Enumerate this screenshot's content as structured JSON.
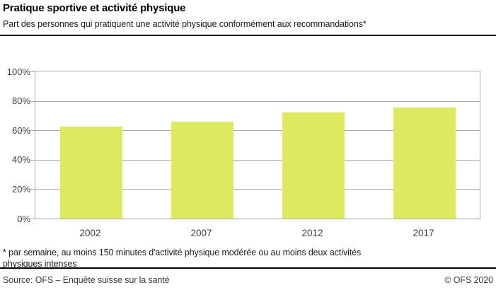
{
  "header": {
    "title": "Pratique sportive et activité physique",
    "subtitle": "Part des personnes qui pratiquent une activité physique conformément aux recommandations*"
  },
  "chart_data": {
    "type": "bar",
    "categories": [
      "2002",
      "2007",
      "2012",
      "2017"
    ],
    "values": [
      62.5,
      66,
      72,
      75.5
    ],
    "title": "Pratique sportive et activité physique",
    "xlabel": "",
    "ylabel": "",
    "ylim": [
      0,
      100
    ],
    "yticks": [
      0,
      20,
      40,
      60,
      80,
      100
    ],
    "ytick_labels": [
      "0%",
      "20%",
      "40%",
      "60%",
      "80%",
      "100%"
    ],
    "grid": true,
    "legend": "none",
    "bar_color": "#dde961",
    "grid_color": "#a9a9a9"
  },
  "footnote": {
    "line1": "* par semaine, au moins 150 minutes d'activité physique modérée ou au moins deux activités",
    "line2": "physiques intenses"
  },
  "footer": {
    "source": "Source: OFS – Enquête suisse sur la santé",
    "copyright": "© OFS 2020"
  }
}
